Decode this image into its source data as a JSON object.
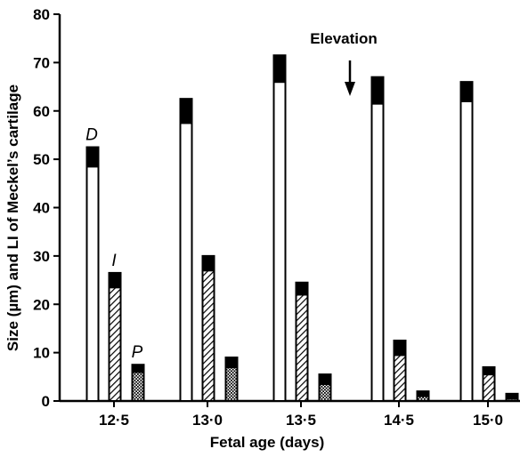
{
  "chart_data": {
    "type": "bar",
    "stacked": true,
    "title": "",
    "xlabel": "Fetal age (days)",
    "ylabel": "Size (µm) and LI of Meckel’s cartilage",
    "ylim": [
      0,
      80
    ],
    "yticks": [
      0,
      10,
      20,
      30,
      40,
      50,
      60,
      70,
      80
    ],
    "categories": [
      "12·5",
      "13·0",
      "13·5",
      "14·5",
      "15·0"
    ],
    "series": [
      {
        "name": "D",
        "fill": "white",
        "base": [
          48.5,
          57.5,
          66,
          61.5,
          62
        ],
        "total": [
          52.5,
          62.5,
          71.5,
          67,
          66
        ]
      },
      {
        "name": "I",
        "fill": "hatch",
        "base": [
          23.5,
          27,
          22,
          9.5,
          5.5
        ],
        "total": [
          26.5,
          30,
          24.5,
          12.5,
          7
        ]
      },
      {
        "name": "P",
        "fill": "dots",
        "base": [
          6,
          7,
          3.5,
          1,
          0.5
        ],
        "total": [
          7.5,
          9,
          5.5,
          2,
          1.5
        ]
      }
    ],
    "bar_letters": [
      "D",
      "I",
      "P"
    ],
    "annotation": {
      "text": "Elevation",
      "arrow": "down",
      "position": "between 13·5 and 14·5"
    },
    "grid": false,
    "legend": "none"
  }
}
